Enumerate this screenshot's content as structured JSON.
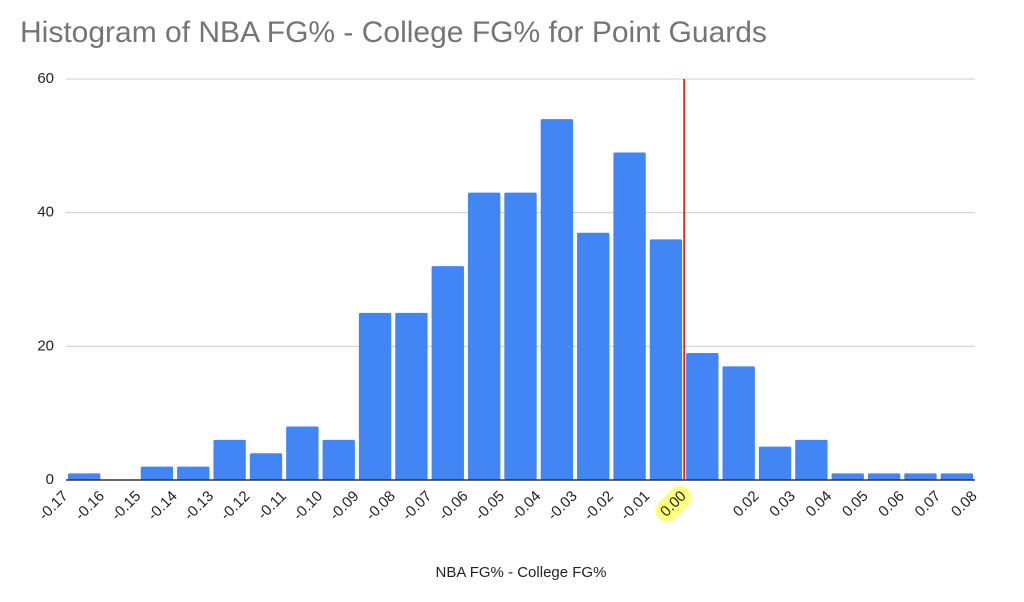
{
  "chart_data": {
    "type": "histogram",
    "title": "Histogram of NBA FG% - College FG% for Point Guards",
    "x_label": "NBA FG% - College FG%",
    "bins": [
      -0.17,
      -0.16,
      -0.15,
      -0.14,
      -0.13,
      -0.12,
      -0.11,
      -0.1,
      -0.09,
      -0.08,
      -0.07,
      -0.06,
      -0.05,
      -0.04,
      -0.03,
      -0.02,
      -0.01,
      0.0,
      0.01,
      0.02,
      0.03,
      0.04,
      0.05,
      0.06,
      0.07,
      0.08
    ],
    "values": [
      1,
      0,
      2,
      2,
      6,
      4,
      8,
      6,
      25,
      25,
      32,
      43,
      43,
      54,
      37,
      49,
      36,
      19,
      17,
      5,
      6,
      1,
      1,
      1,
      1
    ],
    "color": "#4285f4",
    "xlim": [
      -0.17,
      0.08
    ],
    "xticks": [
      -0.17,
      -0.16,
      -0.15,
      -0.14,
      -0.13,
      -0.12,
      -0.11,
      {
        "value": -0.1,
        "label": "-0.10"
      },
      -0.09,
      -0.08,
      -0.07,
      -0.06,
      -0.05,
      -0.04,
      -0.03,
      -0.02,
      -0.01,
      {
        "value": 0,
        "label": "0.00"
      },
      0.02,
      0.03,
      0.04,
      0.05,
      0.06,
      0.07,
      0.08
    ],
    "ylim": [
      0,
      60
    ],
    "yticks": [
      0,
      20,
      40,
      60
    ],
    "grid": true,
    "reference_line": {
      "x": 0,
      "color": "#e00000",
      "label_highlight": "#ffff80"
    }
  }
}
